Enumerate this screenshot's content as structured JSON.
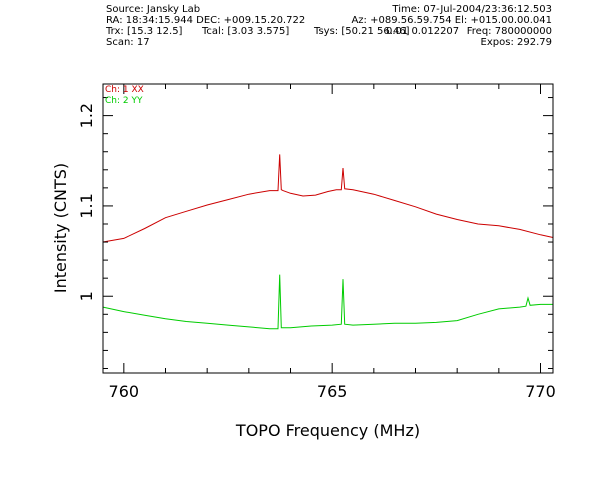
{
  "header": {
    "source": "Source: Jansky Lab",
    "time": "Time: 07-Jul-2004/23:36:12.503",
    "ra_dec": "RA: 18:34:15.944  DEC: +009.15.20.722",
    "az_el": "Az: +089.56.59.754  El: +015.00.00.041",
    "trx": "Trx: [15.3 12.5]",
    "tcal": "Tcal: [3.03 3.575]",
    "tsys": "Tsys: [50.21 56.46]",
    "stddev": "0.01 0.012207",
    "freq": "Freq: 780000000",
    "scan": "Scan: 17",
    "expos": "Expos: 292.79"
  },
  "chart_data": {
    "type": "line",
    "title": "",
    "xlabel": "TOPO Frequency (MHz)",
    "ylabel": "Intensity (CNTS)",
    "xlim": [
      759.5,
      770.3
    ],
    "ylim": [
      0.915,
      1.235
    ],
    "xticks_major": [
      760,
      765,
      770
    ],
    "xtick_labels": [
      "760",
      "765",
      "770"
    ],
    "yticks_major": [
      1.0,
      1.1,
      1.2
    ],
    "ytick_labels": [
      "1",
      "1.1",
      "1.2"
    ],
    "grid": false,
    "legend_position": "top-left",
    "series": [
      {
        "name": "Ch: 1 XX",
        "color": "#cc0000",
        "x": [
          759.5,
          760.0,
          760.5,
          761.0,
          761.5,
          762.0,
          762.5,
          763.0,
          763.5,
          763.7,
          763.74,
          763.78,
          763.82,
          764.0,
          764.3,
          764.6,
          764.9,
          765.1,
          765.22,
          765.26,
          765.3,
          765.5,
          766.0,
          766.5,
          767.0,
          767.5,
          768.0,
          768.5,
          769.0,
          769.5,
          770.0,
          770.3
        ],
        "values": [
          1.06,
          1.064,
          1.075,
          1.087,
          1.094,
          1.101,
          1.107,
          1.113,
          1.117,
          1.117,
          1.157,
          1.118,
          1.117,
          1.114,
          1.111,
          1.112,
          1.116,
          1.118,
          1.118,
          1.142,
          1.119,
          1.118,
          1.113,
          1.106,
          1.099,
          1.091,
          1.085,
          1.08,
          1.078,
          1.074,
          1.068,
          1.065
        ]
      },
      {
        "name": "Ch: 2 YY",
        "color": "#00cc00",
        "x": [
          759.5,
          760.0,
          760.5,
          761.0,
          761.5,
          762.0,
          762.5,
          763.0,
          763.5,
          763.7,
          763.74,
          763.78,
          763.82,
          764.0,
          764.5,
          765.0,
          765.22,
          765.26,
          765.3,
          765.5,
          766.0,
          766.5,
          767.0,
          767.5,
          768.0,
          768.5,
          769.0,
          769.5,
          769.65,
          769.7,
          769.75,
          770.0,
          770.3
        ],
        "values": [
          0.988,
          0.983,
          0.979,
          0.975,
          0.972,
          0.97,
          0.968,
          0.966,
          0.964,
          0.964,
          1.024,
          0.965,
          0.965,
          0.965,
          0.967,
          0.968,
          0.969,
          1.019,
          0.969,
          0.968,
          0.969,
          0.97,
          0.97,
          0.971,
          0.973,
          0.98,
          0.986,
          0.988,
          0.989,
          0.998,
          0.99,
          0.991,
          0.991
        ]
      }
    ]
  }
}
